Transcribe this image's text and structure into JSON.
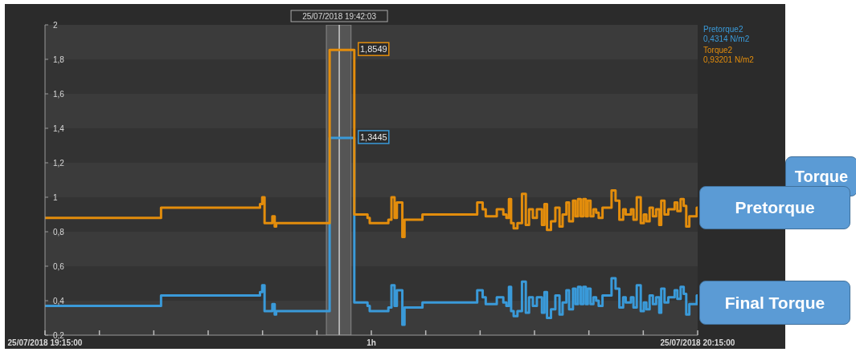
{
  "chart_data": {
    "type": "step",
    "x": [
      "2018-07-25T19:15:00",
      "2018-07-25T19:25:40",
      "2018-07-25T19:34:46",
      "2018-07-25T19:34:58",
      "2018-07-25T19:35:11",
      "2018-07-25T19:35:54",
      "2018-07-25T19:36:07",
      "2018-07-25T19:36:15",
      "2018-07-25T19:41:10",
      "2018-07-25T19:43:26",
      "2018-07-25T19:44:39",
      "2018-07-25T19:44:51",
      "2018-07-25T19:46:34",
      "2018-07-25T19:46:51",
      "2018-07-25T19:47:08",
      "2018-07-25T19:47:21",
      "2018-07-25T19:47:51",
      "2018-07-25T19:48:03",
      "2018-07-25T19:49:42",
      "2018-07-25T19:54:44",
      "2018-07-25T19:55:14",
      "2018-07-25T19:55:31",
      "2018-07-25T19:55:57",
      "2018-07-25T19:56:32",
      "2018-07-25T19:57:08",
      "2018-07-25T19:57:25",
      "2018-07-25T19:57:39",
      "2018-07-25T19:57:51",
      "2018-07-25T19:58:05",
      "2018-07-25T19:58:26",
      "2018-07-25T19:58:51",
      "2018-07-25T19:59:12",
      "2018-07-25T19:59:30",
      "2018-07-25T19:59:51",
      "2018-07-25T20:00:13",
      "2018-07-25T20:00:41",
      "2018-07-25T20:00:55",
      "2018-07-25T20:01:09",
      "2018-07-25T20:01:31",
      "2018-07-25T20:01:55",
      "2018-07-25T20:02:18",
      "2018-07-25T20:02:35",
      "2018-07-25T20:02:56",
      "2018-07-25T20:03:11",
      "2018-07-25T20:03:32",
      "2018-07-25T20:03:46",
      "2018-07-25T20:04:00",
      "2018-07-25T20:04:15",
      "2018-07-25T20:04:29",
      "2018-07-25T20:04:43",
      "2018-07-25T20:04:54",
      "2018-07-25T20:05:09",
      "2018-07-25T20:05:25",
      "2018-07-25T20:05:40",
      "2018-07-25T20:05:54",
      "2018-07-25T20:06:15",
      "2018-07-25T20:07:05",
      "2018-07-25T20:07:27",
      "2018-07-25T20:07:48",
      "2018-07-25T20:08:09",
      "2018-07-25T20:08:23",
      "2018-07-25T20:08:52",
      "2018-07-25T20:09:06",
      "2018-07-25T20:09:24",
      "2018-07-25T20:09:46",
      "2018-07-25T20:10:03",
      "2018-07-25T20:10:17",
      "2018-07-25T20:10:35",
      "2018-07-25T20:10:53",
      "2018-07-25T20:11:11",
      "2018-07-25T20:11:28",
      "2018-07-25T20:11:39",
      "2018-07-25T20:11:57",
      "2018-07-25T20:12:18",
      "2018-07-25T20:12:53",
      "2018-07-25T20:13:08",
      "2018-07-25T20:13:26",
      "2018-07-25T20:13:43",
      "2018-07-25T20:13:57",
      "2018-07-25T20:14:14",
      "2018-07-25T20:14:55",
      "2018-07-25T20:15:00"
    ],
    "series": [
      {
        "name": "Pretorque2",
        "color": "#3a9ad9",
        "values": [
          0.37,
          0.43,
          0.45,
          0.49,
          0.34,
          0.38,
          0.32,
          0.34,
          1.3445,
          0.39,
          0.37,
          0.34,
          0.36,
          0.49,
          0.37,
          0.46,
          0.26,
          0.36,
          0.39,
          0.46,
          0.42,
          0.38,
          0.38,
          0.42,
          0.39,
          0.37,
          0.48,
          0.34,
          0.31,
          0.34,
          0.51,
          0.33,
          0.42,
          0.37,
          0.42,
          0.33,
          0.45,
          0.3,
          0.35,
          0.43,
          0.32,
          0.39,
          0.46,
          0.35,
          0.47,
          0.38,
          0.48,
          0.38,
          0.48,
          0.38,
          0.47,
          0.38,
          0.42,
          0.4,
          0.37,
          0.43,
          0.53,
          0.47,
          0.36,
          0.42,
          0.39,
          0.42,
          0.36,
          0.49,
          0.34,
          0.39,
          0.35,
          0.43,
          0.38,
          0.42,
          0.33,
          0.47,
          0.39,
          0.42,
          0.46,
          0.41,
          0.48,
          0.44,
          0.32,
          0.38,
          0.43,
          0.43
        ]
      },
      {
        "name": "Torque2",
        "color": "#e38d0c",
        "values": [
          0.88,
          0.94,
          0.96,
          1.0,
          0.85,
          0.89,
          0.83,
          0.85,
          1.8549,
          0.9,
          0.88,
          0.85,
          0.87,
          1.0,
          0.88,
          0.97,
          0.77,
          0.87,
          0.9,
          0.97,
          0.93,
          0.89,
          0.89,
          0.93,
          0.9,
          0.88,
          0.99,
          0.85,
          0.82,
          0.85,
          1.02,
          0.84,
          0.93,
          0.88,
          0.93,
          0.84,
          0.96,
          0.81,
          0.86,
          0.94,
          0.83,
          0.9,
          0.97,
          0.86,
          0.98,
          0.89,
          0.99,
          0.89,
          0.99,
          0.89,
          0.98,
          0.89,
          0.93,
          0.91,
          0.88,
          0.94,
          1.04,
          0.98,
          0.87,
          0.93,
          0.9,
          0.93,
          0.87,
          1.0,
          0.85,
          0.9,
          0.86,
          0.94,
          0.89,
          0.93,
          0.84,
          0.98,
          0.9,
          0.93,
          0.97,
          0.92,
          0.99,
          0.95,
          0.83,
          0.89,
          0.94,
          0.94
        ]
      }
    ],
    "xlim": [
      "2018-07-25T19:15",
      "2018-07-25T20:15"
    ],
    "xticks": [
      {
        "value": "2018-07-25T19:15",
        "label": "25/07/2018 19:15:00"
      },
      {
        "value": "2018-07-25T19:20",
        "label": null
      },
      {
        "value": "2018-07-25T19:25",
        "label": null
      },
      {
        "value": "2018-07-25T19:30",
        "label": null
      },
      {
        "value": "2018-07-25T19:35",
        "label": null
      },
      {
        "value": "2018-07-25T19:40",
        "label": null
      },
      {
        "value": "2018-07-25T19:45",
        "label": "1h"
      },
      {
        "value": "2018-07-25T19:50",
        "label": null
      },
      {
        "value": "2018-07-25T19:55",
        "label": null
      },
      {
        "value": "2018-07-25T20:00",
        "label": null
      },
      {
        "value": "2018-07-25T20:05",
        "label": null
      },
      {
        "value": "2018-07-25T20:10",
        "label": null
      },
      {
        "value": "2018-07-25T20:15",
        "label": "25/07/2018 20:15:00"
      }
    ],
    "ylim": [
      0.2,
      2
    ],
    "yticks": [
      {
        "value": 0.2,
        "label": "0,2"
      },
      {
        "value": 0.4,
        "label": "0,4"
      },
      {
        "value": 0.6,
        "label": "0,6"
      },
      {
        "value": 0.8,
        "label": "0,8"
      },
      1,
      {
        "value": 1.2,
        "label": "1,2"
      },
      {
        "value": 1.4,
        "label": "1,4"
      },
      {
        "value": 1.6,
        "label": "1,6"
      },
      {
        "value": 1.8,
        "label": "1,8"
      },
      2
    ],
    "legend": "top right",
    "marker": "none",
    "line_style": "solid",
    "ref_lines": [
      {
        "axis": "x",
        "value": "2018-07-25T19:42:03",
        "label": "25/07/2018 19:42:03",
        "color": "#cccccc"
      }
    ],
    "bands": [
      {
        "axis": "x",
        "from": "2018-07-25T19:40:52",
        "to": "2018-07-25T19:43:08",
        "color": "#555555"
      }
    ],
    "annotations": [
      "0,4314 N/m2",
      "0,93201 N/m2",
      "Torque",
      "Pretorque",
      "Final Torque",
      {
        "text": "1,8549",
        "x": "2018-07-25T19:43:26",
        "y": 1.8549
      },
      {
        "text": "1,3445",
        "x": "2018-07-25T19:43:26",
        "y": 1.3445
      }
    ]
  }
}
